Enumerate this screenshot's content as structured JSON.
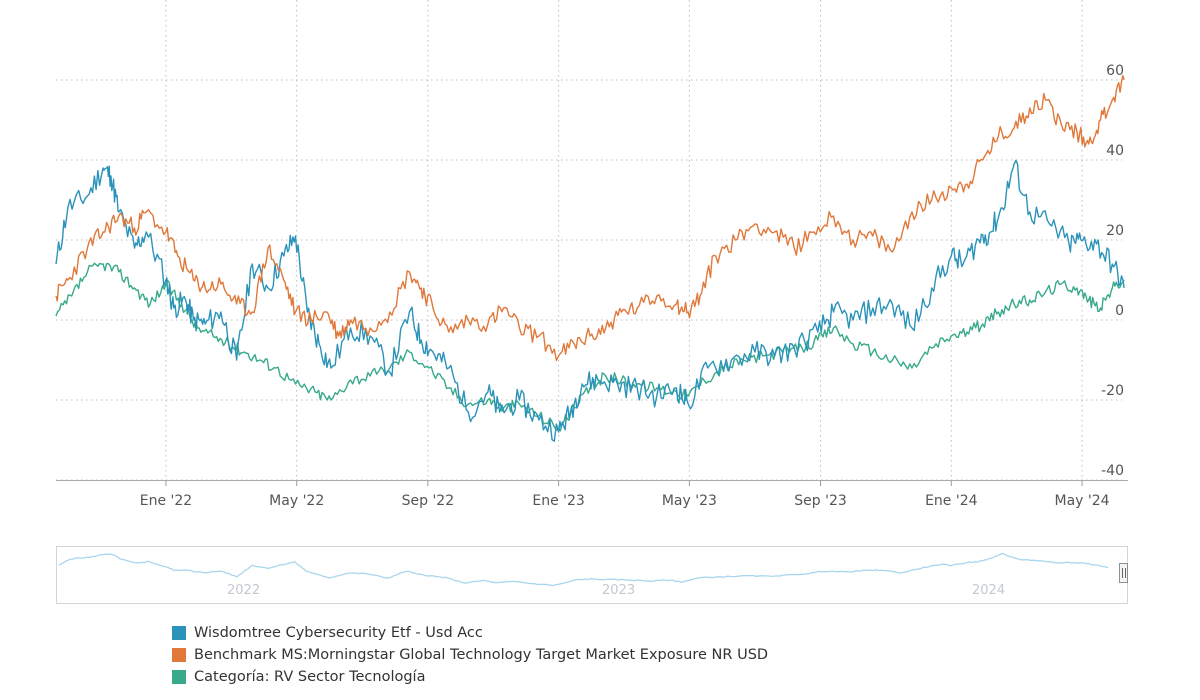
{
  "colors": {
    "fund": "#2b93b9",
    "benchmark": "#e0783a",
    "category": "#38a98a",
    "navigator_line": "#a9d6ee",
    "grid": "#bdbdbd",
    "axis_text": "#555555"
  },
  "navigator": {
    "years": [
      "2022",
      "2023",
      "2024"
    ]
  },
  "chart_data": {
    "type": "line",
    "title": "",
    "xlabel": "",
    "ylabel": "",
    "ylim": [
      -40,
      60
    ],
    "yticks": [
      "60",
      "40",
      "20",
      "0",
      "-20",
      "-40"
    ],
    "xlim": [
      2021.72,
      2024.45
    ],
    "xticks": [
      {
        "label": "Ene '22",
        "x": 2022.0
      },
      {
        "label": "May '22",
        "x": 2022.333
      },
      {
        "label": "Sep '22",
        "x": 2022.667
      },
      {
        "label": "Ene '23",
        "x": 2023.0
      },
      {
        "label": "May '23",
        "x": 2023.333
      },
      {
        "label": "Sep '23",
        "x": 2023.667
      },
      {
        "label": "Ene '24",
        "x": 2024.0
      },
      {
        "label": "May '24",
        "x": 2024.333
      }
    ],
    "legend_position": "bottom-left",
    "series": [
      {
        "key": "fund",
        "name": "Wisdomtree Cybersecurity Etf - Usd Acc",
        "x": [
          2021.72,
          2021.75,
          2021.8,
          2021.84,
          2021.86,
          2021.88,
          2021.92,
          2021.95,
          2022.0,
          2022.02,
          2022.05,
          2022.07,
          2022.1,
          2022.14,
          2022.18,
          2022.22,
          2022.26,
          2022.3,
          2022.33,
          2022.36,
          2022.39,
          2022.42,
          2022.47,
          2022.52,
          2022.57,
          2022.62,
          2022.65,
          2022.68,
          2022.72,
          2022.77,
          2022.82,
          2022.85,
          2022.9,
          2022.95,
          2023.0,
          2023.03,
          2023.06,
          2023.1,
          2023.15,
          2023.2,
          2023.25,
          2023.3,
          2023.33,
          2023.38,
          2023.44,
          2023.5,
          2023.55,
          2023.6,
          2023.66,
          2023.7,
          2023.75,
          2023.8,
          2023.85,
          2023.9,
          2023.95,
          2024.0,
          2024.03,
          2024.07,
          2024.1,
          2024.13,
          2024.16,
          2024.2,
          2024.25,
          2024.3,
          2024.33,
          2024.37,
          2024.41,
          2024.44
        ],
        "values": [
          14,
          28,
          31,
          38,
          36,
          27,
          18,
          22,
          10,
          3,
          5,
          0,
          -1,
          2,
          -10,
          14,
          8,
          16,
          21,
          2,
          -6,
          -12,
          -2,
          -4,
          -13,
          2,
          -5,
          -8,
          -12,
          -23,
          -18,
          -23,
          -20,
          -25,
          -28,
          -23,
          -16,
          -15,
          -16,
          -17,
          -19,
          -17,
          -21,
          -12,
          -10,
          -8,
          -9,
          -7,
          -3,
          2,
          0,
          3,
          4,
          -2,
          8,
          16,
          14,
          20,
          22,
          28,
          39,
          27,
          24,
          19,
          20,
          19,
          14,
          8
        ]
      },
      {
        "key": "benchmark",
        "name": "Benchmark MS:Morningstar Global Technology Target Market Exposure NR USD",
        "x": [
          2021.72,
          2021.75,
          2021.8,
          2021.84,
          2021.88,
          2021.92,
          2021.95,
          2022.0,
          2022.03,
          2022.07,
          2022.1,
          2022.14,
          2022.18,
          2022.22,
          2022.26,
          2022.3,
          2022.33,
          2022.37,
          2022.41,
          2022.44,
          2022.47,
          2022.52,
          2022.57,
          2022.62,
          2022.65,
          2022.68,
          2022.72,
          2022.77,
          2022.82,
          2022.86,
          2022.9,
          2022.95,
          2023.0,
          2023.04,
          2023.08,
          2023.12,
          2023.16,
          2023.2,
          2023.25,
          2023.3,
          2023.33,
          2023.36,
          2023.4,
          2023.45,
          2023.5,
          2023.55,
          2023.6,
          2023.65,
          2023.7,
          2023.75,
          2023.8,
          2023.85,
          2023.9,
          2023.95,
          2024.0,
          2024.04,
          2024.08,
          2024.12,
          2024.16,
          2024.2,
          2024.24,
          2024.28,
          2024.32,
          2024.35,
          2024.38,
          2024.41,
          2024.44
        ],
        "values": [
          6,
          10,
          18,
          22,
          26,
          23,
          27,
          22,
          16,
          10,
          8,
          9,
          4,
          2,
          18,
          10,
          2,
          0,
          2,
          -4,
          0,
          -2,
          2,
          12,
          8,
          3,
          -3,
          0,
          -1,
          3,
          -2,
          -4,
          -9,
          -6,
          -4,
          -2,
          2,
          3,
          6,
          4,
          2,
          6,
          16,
          20,
          24,
          22,
          18,
          22,
          26,
          20,
          21,
          17,
          27,
          30,
          33,
          34,
          40,
          46,
          48,
          53,
          55,
          49,
          47,
          44,
          50,
          55,
          60
        ]
      },
      {
        "key": "category",
        "name": "Categoría: RV Sector Tecnología",
        "x": [
          2021.72,
          2021.76,
          2021.8,
          2021.84,
          2021.88,
          2021.92,
          2021.96,
          2022.0,
          2022.04,
          2022.08,
          2022.12,
          2022.16,
          2022.2,
          2022.24,
          2022.28,
          2022.33,
          2022.38,
          2022.42,
          2022.47,
          2022.52,
          2022.57,
          2022.62,
          2022.67,
          2022.72,
          2022.77,
          2022.82,
          2022.86,
          2022.9,
          2022.95,
          2023.0,
          2023.04,
          2023.08,
          2023.12,
          2023.16,
          2023.2,
          2023.25,
          2023.3,
          2023.33,
          2023.37,
          2023.42,
          2023.47,
          2023.52,
          2023.57,
          2023.62,
          2023.66,
          2023.7,
          2023.75,
          2023.8,
          2023.85,
          2023.9,
          2023.95,
          2024.0,
          2024.04,
          2024.08,
          2024.12,
          2024.16,
          2024.2,
          2024.24,
          2024.28,
          2024.32,
          2024.35,
          2024.38,
          2024.41,
          2024.44
        ],
        "values": [
          1,
          6,
          12,
          14,
          12,
          8,
          4,
          9,
          4,
          -2,
          -4,
          -6,
          -8,
          -10,
          -12,
          -16,
          -18,
          -20,
          -15,
          -14,
          -12,
          -8,
          -12,
          -17,
          -21,
          -20,
          -22,
          -21,
          -24,
          -27,
          -22,
          -17,
          -14,
          -15,
          -16,
          -17,
          -18,
          -19,
          -15,
          -12,
          -10,
          -9,
          -8,
          -7,
          -5,
          -2,
          -6,
          -8,
          -10,
          -12,
          -7,
          -4,
          -3,
          -1,
          2,
          4,
          5,
          7,
          9,
          8,
          5,
          3,
          8,
          10
        ]
      }
    ]
  },
  "legend": {
    "items": [
      {
        "label": "Wisdomtree Cybersecurity Etf - Usd Acc"
      },
      {
        "label": "Benchmark MS:Morningstar Global Technology Target Market Exposure NR USD"
      },
      {
        "label": "Categoría: RV Sector Tecnología"
      }
    ]
  }
}
